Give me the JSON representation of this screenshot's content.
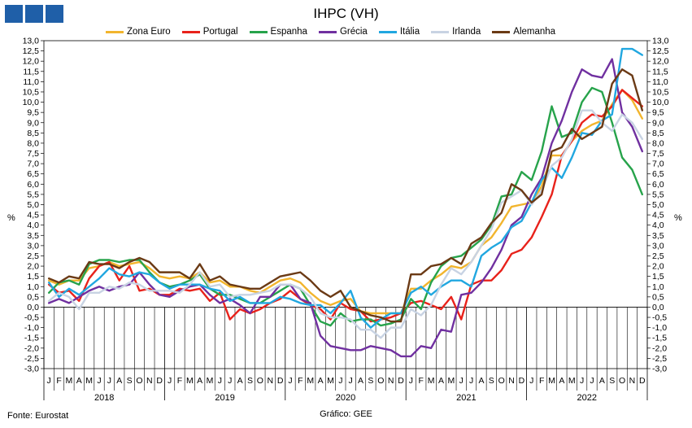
{
  "chart_data": {
    "type": "line",
    "title": "IHPC (VH)",
    "ylabel": "%",
    "ylim": [
      -3,
      13
    ],
    "ytick_step": 0.5,
    "month_labels": [
      "J",
      "F",
      "M",
      "A",
      "M",
      "J",
      "J",
      "A",
      "S",
      "O",
      "N",
      "D"
    ],
    "years": [
      "2018",
      "2019",
      "2020",
      "2021",
      "2022"
    ],
    "grid": "none",
    "legend_position": "top",
    "series": [
      {
        "name": "Zona Euro",
        "color": "#f2b52e",
        "values": [
          1.3,
          1.1,
          1.3,
          1.3,
          1.9,
          2.0,
          2.2,
          2.0,
          2.1,
          2.2,
          1.9,
          1.5,
          1.4,
          1.5,
          1.4,
          1.7,
          1.2,
          1.3,
          1.0,
          1.0,
          0.8,
          0.7,
          1.0,
          1.3,
          1.4,
          1.2,
          0.7,
          0.3,
          0.1,
          0.3,
          0.4,
          -0.2,
          -0.3,
          -0.3,
          -0.3,
          -0.3,
          0.9,
          0.9,
          1.3,
          1.6,
          2.0,
          1.9,
          2.2,
          3.0,
          3.4,
          4.1,
          4.9,
          5.0,
          5.1,
          5.9,
          7.4,
          7.4,
          8.1,
          8.6,
          8.9,
          9.1,
          9.9,
          10.6,
          10.1,
          9.2
        ]
      },
      {
        "name": "Portugal",
        "color": "#e8221b",
        "values": [
          1.1,
          0.7,
          0.8,
          0.3,
          1.4,
          2.0,
          2.2,
          1.3,
          2.0,
          0.8,
          0.9,
          0.6,
          0.6,
          0.9,
          0.8,
          0.9,
          0.3,
          0.7,
          -0.6,
          -0.1,
          -0.3,
          -0.1,
          0.2,
          0.4,
          0.8,
          0.4,
          0.1,
          -0.1,
          -0.6,
          0.2,
          -0.1,
          -0.2,
          -0.7,
          -0.6,
          -0.5,
          -0.3,
          0.2,
          0.3,
          0.1,
          -0.1,
          0.5,
          -0.6,
          1.1,
          1.3,
          1.3,
          1.8,
          2.6,
          2.8,
          3.4,
          4.4,
          5.5,
          7.4,
          8.1,
          9.0,
          9.4,
          9.3,
          9.8,
          10.6,
          10.2,
          9.8
        ]
      },
      {
        "name": "Espanha",
        "color": "#27a34b",
        "values": [
          0.7,
          1.2,
          1.3,
          1.1,
          2.1,
          2.3,
          2.3,
          2.2,
          2.3,
          2.3,
          1.7,
          1.2,
          1.0,
          1.1,
          1.3,
          1.6,
          0.9,
          0.6,
          0.6,
          0.4,
          0.2,
          0.2,
          0.5,
          0.8,
          1.1,
          0.9,
          0.1,
          -0.7,
          -0.9,
          -0.3,
          -0.7,
          -0.6,
          -0.6,
          -0.9,
          -0.8,
          -0.6,
          0.4,
          -0.1,
          1.2,
          2.0,
          2.4,
          2.5,
          2.9,
          3.3,
          4.0,
          5.4,
          5.5,
          6.6,
          6.2,
          7.6,
          9.8,
          8.3,
          8.5,
          10.0,
          10.7,
          10.5,
          9.0,
          7.3,
          6.7,
          5.5
        ]
      },
      {
        "name": "Grécia",
        "color": "#7030a0",
        "values": [
          0.2,
          0.4,
          0.2,
          0.5,
          0.8,
          1.0,
          0.8,
          1.0,
          1.1,
          1.7,
          1.1,
          0.6,
          0.5,
          0.8,
          1.0,
          1.1,
          0.6,
          0.2,
          0.4,
          0.1,
          -0.3,
          0.5,
          0.5,
          1.1,
          1.1,
          0.4,
          0.2,
          -1.4,
          -1.9,
          -2.0,
          -2.1,
          -2.1,
          -1.9,
          -2.0,
          -2.1,
          -2.4,
          -2.4,
          -1.9,
          -2.0,
          -1.1,
          -1.2,
          0.6,
          0.7,
          1.2,
          1.9,
          2.8,
          4.0,
          4.4,
          5.5,
          6.3,
          8.0,
          9.1,
          10.5,
          11.6,
          11.3,
          11.2,
          12.1,
          9.5,
          8.8,
          7.6
        ]
      },
      {
        "name": "Itália",
        "color": "#21a7e0",
        "values": [
          1.2,
          0.5,
          0.9,
          0.6,
          1.0,
          1.4,
          1.9,
          1.6,
          1.5,
          1.7,
          1.6,
          1.2,
          0.9,
          1.1,
          1.1,
          1.1,
          0.9,
          0.8,
          0.3,
          0.5,
          0.2,
          0.2,
          0.2,
          0.5,
          0.4,
          0.2,
          0.1,
          0.1,
          -0.3,
          0.2,
          0.8,
          -0.5,
          -1.0,
          -0.6,
          -0.3,
          -0.3,
          0.7,
          1.0,
          0.6,
          1.0,
          1.3,
          1.3,
          1.0,
          2.5,
          2.9,
          3.2,
          3.9,
          4.2,
          5.1,
          6.2,
          6.8,
          6.3,
          7.3,
          8.5,
          8.4,
          9.1,
          9.4,
          12.6,
          12.6,
          12.3
        ]
      },
      {
        "name": "Irlanda",
        "color": "#c8d3e3",
        "values": [
          0.3,
          0.7,
          0.5,
          -0.1,
          0.7,
          0.7,
          1.0,
          0.9,
          1.2,
          1.1,
          0.8,
          0.8,
          0.8,
          0.7,
          1.1,
          1.7,
          1.0,
          1.1,
          0.5,
          0.6,
          0.6,
          0.7,
          0.8,
          1.1,
          1.1,
          0.9,
          0.5,
          -0.3,
          -0.5,
          -0.5,
          -0.6,
          -1.1,
          -1.1,
          -1.5,
          -1.0,
          -1.0,
          -0.1,
          -0.4,
          0.1,
          1.1,
          1.9,
          1.6,
          2.2,
          3.0,
          3.8,
          5.1,
          5.4,
          5.7,
          5.0,
          5.7,
          6.9,
          7.3,
          8.2,
          9.6,
          9.6,
          9.0,
          8.6,
          9.4,
          9.0,
          8.2
        ]
      },
      {
        "name": "Alemanha",
        "color": "#6b3a15",
        "values": [
          1.4,
          1.2,
          1.5,
          1.4,
          2.2,
          2.1,
          2.1,
          1.9,
          2.2,
          2.4,
          2.2,
          1.7,
          1.7,
          1.7,
          1.4,
          2.1,
          1.3,
          1.5,
          1.1,
          1.0,
          0.9,
          0.9,
          1.2,
          1.5,
          1.6,
          1.7,
          1.3,
          0.8,
          0.5,
          0.8,
          0.0,
          -0.2,
          -0.4,
          -0.5,
          -0.7,
          -0.7,
          1.6,
          1.6,
          2.0,
          2.1,
          2.4,
          2.1,
          3.1,
          3.4,
          4.1,
          4.6,
          6.0,
          5.7,
          5.1,
          5.5,
          7.6,
          7.8,
          8.7,
          8.2,
          8.5,
          8.8,
          10.9,
          11.6,
          11.3,
          9.6
        ]
      }
    ]
  },
  "footer": {
    "source": "Fonte: Eurostat",
    "credit": "Gráfico: GEE"
  }
}
